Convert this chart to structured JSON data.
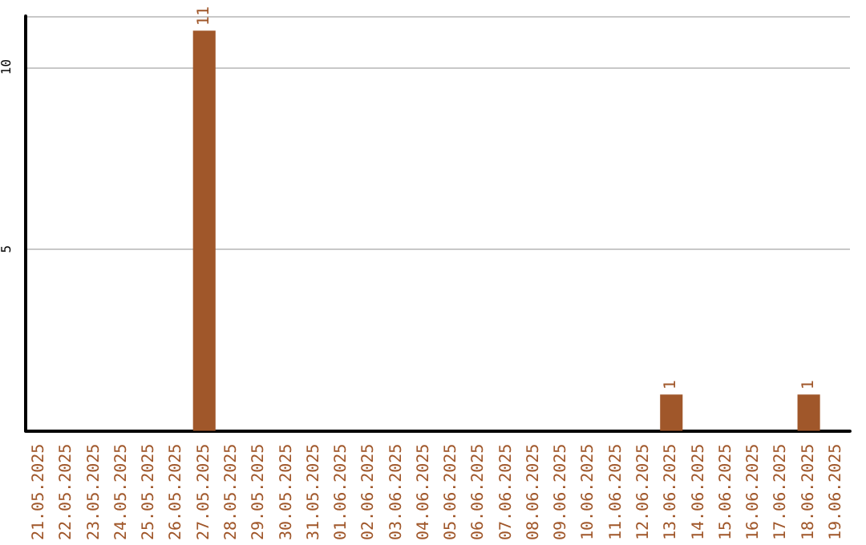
{
  "chart_data": {
    "type": "bar",
    "categories": [
      "21.05.2025",
      "22.05.2025",
      "23.05.2025",
      "24.05.2025",
      "25.05.2025",
      "26.05.2025",
      "27.05.2025",
      "28.05.2025",
      "29.05.2025",
      "30.05.2025",
      "31.05.2025",
      "01.06.2025",
      "02.06.2025",
      "03.06.2025",
      "04.06.2025",
      "05.06.2025",
      "06.06.2025",
      "07.06.2025",
      "08.06.2025",
      "09.06.2025",
      "10.06.2025",
      "11.06.2025",
      "12.06.2025",
      "13.06.2025",
      "14.06.2025",
      "15.06.2025",
      "16.06.2025",
      "17.06.2025",
      "18.06.2025",
      "19.06.2025"
    ],
    "values": [
      0,
      0,
      0,
      0,
      0,
      0,
      11,
      0,
      0,
      0,
      0,
      0,
      0,
      0,
      0,
      0,
      0,
      0,
      0,
      0,
      0,
      0,
      0,
      1,
      0,
      0,
      0,
      0,
      1,
      0
    ],
    "value_labels": [
      null,
      null,
      null,
      null,
      null,
      null,
      "11",
      null,
      null,
      null,
      null,
      null,
      null,
      null,
      null,
      null,
      null,
      null,
      null,
      null,
      null,
      null,
      null,
      "1",
      null,
      null,
      null,
      null,
      "1",
      null
    ],
    "color": "#a0572a",
    "ylim": [
      0,
      11.4
    ],
    "yticks": [
      5,
      10
    ],
    "grid": "y"
  }
}
